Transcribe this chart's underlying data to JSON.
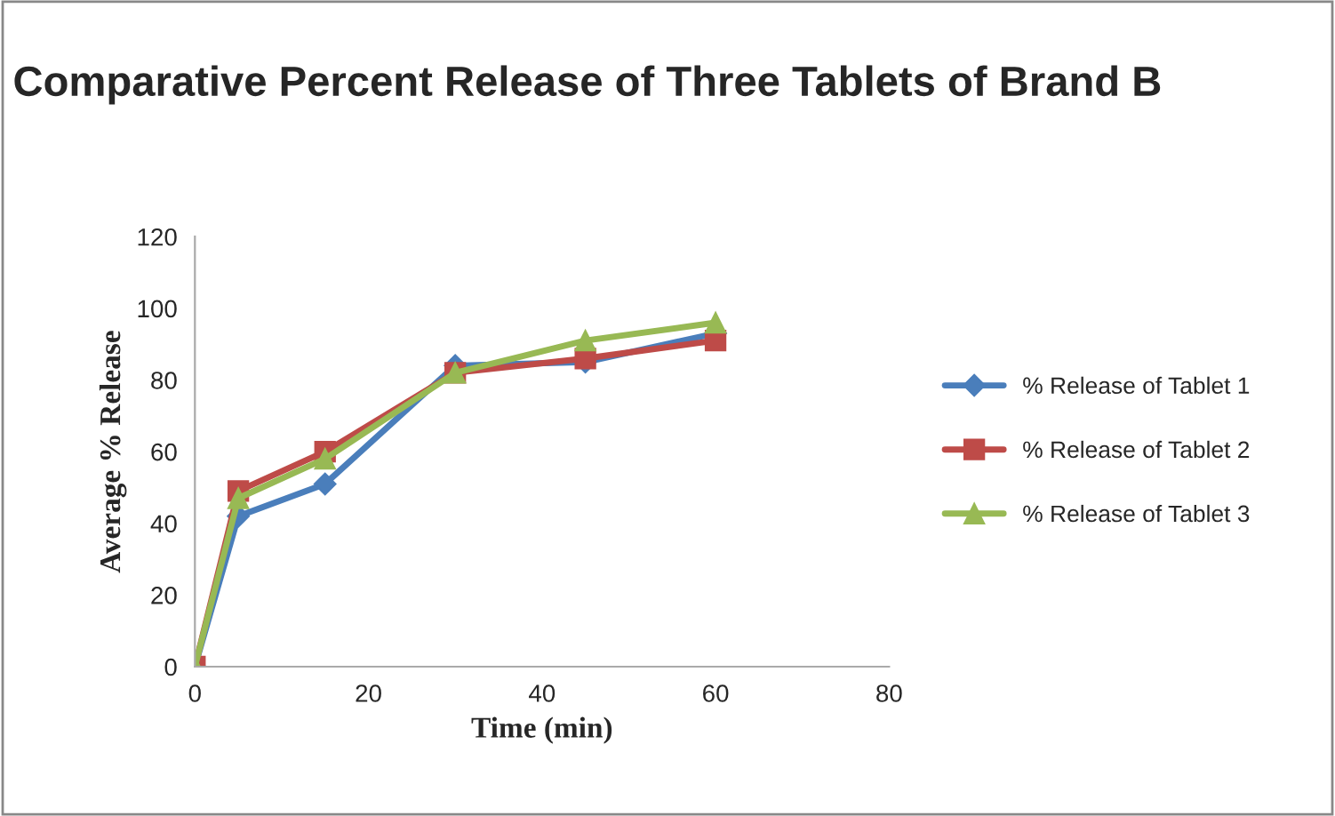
{
  "chart_data": {
    "type": "line",
    "title": "Comparative Percent Release of Three Tablets of Brand B",
    "xlabel": "Time (min)",
    "ylabel": "Average % Release",
    "x": [
      0,
      5,
      15,
      30,
      45,
      60
    ],
    "series": [
      {
        "name": "% Release of Tablet 1",
        "color": "#4a7ebb",
        "marker": "diamond",
        "values": [
          0,
          42,
          51,
          84,
          85,
          93
        ]
      },
      {
        "name": "% Release of Tablet 2",
        "color": "#be4b48",
        "marker": "square",
        "values": [
          0,
          49,
          60,
          82,
          86,
          91
        ]
      },
      {
        "name": "% Release of Tablet 3",
        "color": "#98b954",
        "marker": "triangle",
        "values": [
          0,
          47,
          58,
          82,
          91,
          96
        ]
      }
    ],
    "xlim": [
      0,
      80
    ],
    "xticks": [
      0,
      20,
      40,
      60,
      80
    ],
    "ylim": [
      0,
      120
    ],
    "yticks": [
      0,
      20,
      40,
      60,
      80,
      100,
      120
    ],
    "grid": false,
    "legend": "right",
    "line_style": "solid"
  }
}
